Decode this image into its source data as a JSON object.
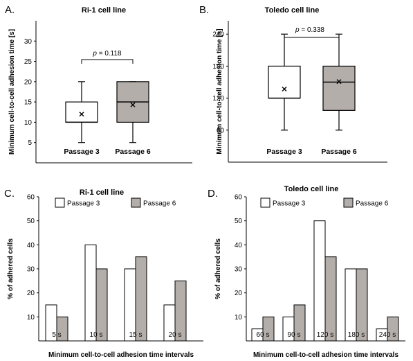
{
  "panels": {
    "A": {
      "letter": "A."
    },
    "B": {
      "letter": "B."
    },
    "C": {
      "letter": "C."
    },
    "D": {
      "letter": "D."
    }
  },
  "colors": {
    "passage3": "#ffffff",
    "passage6": "#b3aeaa",
    "stroke": "#000000"
  },
  "chart_data": [
    {
      "id": "A",
      "type": "box",
      "title": "Ri-1 cell line",
      "ylabel": "Minimum cell-to-cell adhesion time [s]",
      "ylim": [
        0,
        35
      ],
      "yticks": [
        5,
        10,
        15,
        20,
        25,
        30
      ],
      "categories": [
        "Passage 3",
        "Passage 6"
      ],
      "boxes": [
        {
          "min": 5,
          "q1": 10,
          "median": 10,
          "q3": 15,
          "max": 20,
          "mean": 12
        },
        {
          "min": 5,
          "q1": 10,
          "median": 15,
          "q3": 20,
          "max": 20,
          "mean": 14.3
        }
      ],
      "significance": {
        "p_label": "p",
        "p_text": " = 0.118"
      }
    },
    {
      "id": "B",
      "type": "box",
      "title": "Toledo cell line",
      "ylabel": "Minimum cell-to-cell adhesion time [s]",
      "ylim": [
        0,
        265
      ],
      "yticks": [
        60,
        120,
        180,
        240
      ],
      "categories": [
        "Passage 3",
        "Passage 6"
      ],
      "boxes": [
        {
          "min": 60,
          "q1": 120,
          "median": 120,
          "q3": 180,
          "max": 240,
          "mean": 137
        },
        {
          "min": 60,
          "q1": 97,
          "median": 150,
          "q3": 180,
          "max": 240,
          "mean": 151
        }
      ],
      "significance": {
        "p_label": "p",
        "p_text": " = 0.338"
      }
    },
    {
      "id": "C",
      "type": "bar",
      "title": "Ri-1 cell line",
      "ylabel": "% of adhered cells",
      "xlabel": "Minimum cell-to-cell adhesion time intervals",
      "ylim": [
        0,
        60
      ],
      "yticks": [
        10,
        20,
        30,
        40,
        50,
        60
      ],
      "categories": [
        "5 s",
        "10 s",
        "15 s",
        "20 s"
      ],
      "series": [
        {
          "name": "Passage 3",
          "values": [
            15,
            40,
            30,
            15
          ]
        },
        {
          "name": "Passage 6",
          "values": [
            10,
            30,
            35,
            25
          ]
        }
      ]
    },
    {
      "id": "D",
      "type": "bar",
      "title": "Toledo cell line",
      "ylabel": "% of adhered cells",
      "xlabel": "Minimum cell-to-cell adhesion time intervals",
      "ylim": [
        0,
        60
      ],
      "yticks": [
        10,
        20,
        30,
        40,
        50,
        60
      ],
      "categories": [
        "60 s",
        "90 s",
        "120 s",
        "180 s",
        "240 s"
      ],
      "series": [
        {
          "name": "Passage 3",
          "values": [
            5,
            10,
            50,
            30,
            5
          ]
        },
        {
          "name": "Passage 6",
          "values": [
            10,
            15,
            35,
            30,
            10
          ]
        }
      ]
    }
  ]
}
